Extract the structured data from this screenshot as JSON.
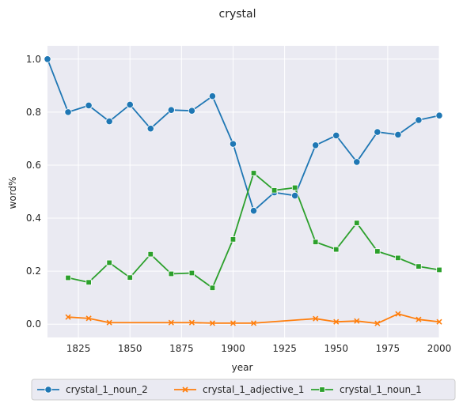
{
  "chart_data": {
    "type": "line",
    "title": "crystal",
    "xlabel": "year",
    "ylabel": "word%",
    "xlim": [
      1810,
      2000
    ],
    "ylim": [
      -0.05,
      1.05
    ],
    "xticks": [
      1825,
      1850,
      1875,
      1900,
      1925,
      1950,
      1975,
      2000
    ],
    "yticks": [
      0.0,
      0.2,
      0.4,
      0.6,
      0.8,
      1.0
    ],
    "xtick_labels": [
      "1825",
      "1850",
      "1875",
      "1900",
      "1925",
      "1950",
      "1975",
      "2000"
    ],
    "ytick_labels": [
      "0.0",
      "0.2",
      "0.4",
      "0.6",
      "0.8",
      "1.0"
    ],
    "grid": true,
    "legend_position": "bottom",
    "series": [
      {
        "name": "crystal_1_noun_2",
        "color": "#1f77b4",
        "marker": "circle",
        "x": [
          1810,
          1820,
          1830,
          1840,
          1850,
          1860,
          1870,
          1880,
          1890,
          1900,
          1910,
          1920,
          1930,
          1940,
          1950,
          1960,
          1970,
          1980,
          1990,
          2000
        ],
        "y": [
          1.0,
          0.8,
          0.825,
          0.765,
          0.828,
          0.738,
          0.808,
          0.805,
          0.86,
          0.68,
          0.428,
          0.497,
          0.485,
          0.675,
          0.712,
          0.612,
          0.725,
          0.715,
          0.77,
          0.787
        ]
      },
      {
        "name": "crystal_1_adjective_1",
        "color": "#ff7f0e",
        "marker": "x",
        "x": [
          1820,
          1830,
          1840,
          1870,
          1880,
          1890,
          1900,
          1910,
          1940,
          1950,
          1960,
          1970,
          1980,
          1990,
          2000
        ],
        "y": [
          0.027,
          0.022,
          0.006,
          0.006,
          0.006,
          0.004,
          0.004,
          0.004,
          0.021,
          0.009,
          0.012,
          0.003,
          0.039,
          0.018,
          0.009
        ]
      },
      {
        "name": "crystal_1_noun_1",
        "color": "#2ca02c",
        "marker": "square",
        "x": [
          1820,
          1830,
          1840,
          1850,
          1860,
          1870,
          1880,
          1890,
          1900,
          1910,
          1920,
          1930,
          1940,
          1950,
          1960,
          1970,
          1980,
          1990,
          2000
        ],
        "y": [
          0.175,
          0.158,
          0.232,
          0.176,
          0.264,
          0.19,
          0.193,
          0.137,
          0.32,
          0.57,
          0.505,
          0.515,
          0.31,
          0.282,
          0.382,
          0.275,
          0.25,
          0.218,
          0.205
        ]
      }
    ]
  }
}
